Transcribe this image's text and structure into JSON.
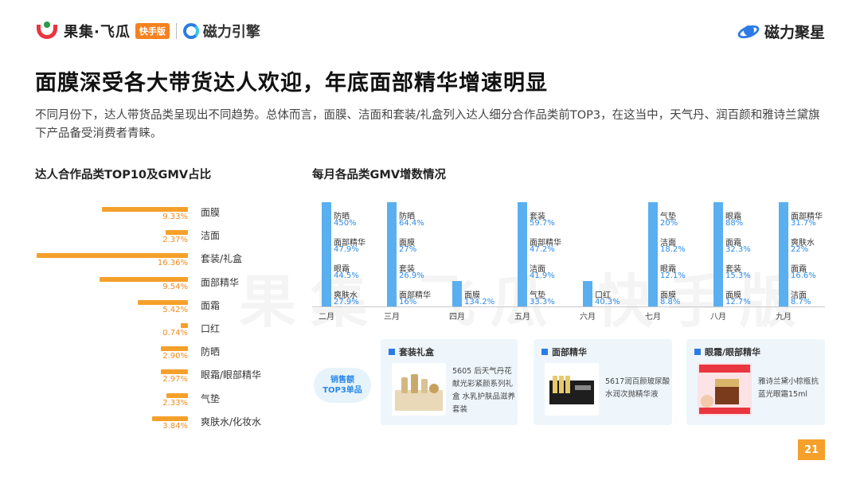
{
  "header": {
    "brand1": "果集·飞瓜",
    "brand1_badge": "快手版",
    "brand2": "磁力引擎",
    "brand3": "磁力聚星"
  },
  "title": "面膜深受各大带货达人欢迎，年底面部精华增速明显",
  "description": "不同月份下，达人带货品类呈现出不同趋势。总体而言，面膜、洁面和套装/礼盒列入达人细分合作品类前TOP3，在这当中，天气丹、润百颜和雅诗兰黛旗下产品备受消费者青睐。",
  "watermark": "果集·飞瓜 快手版",
  "colors": {
    "bar_orange": "#f5a02a",
    "bar_blue": "#5aaff0",
    "value_blue": "#2c8ae8",
    "brand_red": "#e9363f"
  },
  "chart_data": [
    {
      "type": "bar",
      "title": "达人合作品类TOP10及GMV占比",
      "orientation": "horizontal",
      "categories": [
        "面膜",
        "洁面",
        "套装/礼盒",
        "面部精华",
        "面霜",
        "口红",
        "防晒",
        "眼霜/眼部精华",
        "气垫",
        "爽肤水/化妆水"
      ],
      "values": [
        9.33,
        2.37,
        16.36,
        9.54,
        5.42,
        0.74,
        2.9,
        2.97,
        2.33,
        3.84
      ],
      "value_labels": [
        "9.33%",
        "2.37%",
        "16.36%",
        "9.54%",
        "5.42%",
        "0.74%",
        "2.90%",
        "2.97%",
        "2.33%",
        "3.84%"
      ],
      "unit": "%"
    },
    {
      "type": "bar",
      "title": "每月各品类GMV增数情况",
      "months": [
        {
          "month": "二月",
          "items": [
            {
              "name": "防晒",
              "value": "450%"
            },
            {
              "name": "面部精华",
              "value": "47.9%"
            },
            {
              "name": "眼霜",
              "value": "44.5%"
            },
            {
              "name": "爽肤水",
              "value": "27.9%"
            }
          ]
        },
        {
          "month": "三月",
          "items": [
            {
              "name": "防晒",
              "value": "64.4%"
            },
            {
              "name": "面膜",
              "value": "27%"
            },
            {
              "name": "套装",
              "value": "26.9%"
            },
            {
              "name": "面部精华",
              "value": "16%"
            }
          ]
        },
        {
          "month": "四月",
          "items": [
            {
              "name": "面膜",
              "value": "134.2%"
            }
          ]
        },
        {
          "month": "五月",
          "items": [
            {
              "name": "套装",
              "value": "59.7%"
            },
            {
              "name": "面部精华",
              "value": "47.2%"
            },
            {
              "name": "洁面",
              "value": "41.9%"
            },
            {
              "name": "气垫",
              "value": "33.3%"
            }
          ]
        },
        {
          "month": "六月",
          "items": [
            {
              "name": "口红",
              "value": "40.3%"
            }
          ]
        },
        {
          "month": "七月",
          "items": [
            {
              "name": "气垫",
              "value": "20%"
            },
            {
              "name": "洁面",
              "value": "18.2%"
            },
            {
              "name": "眼霜",
              "value": "12.1%"
            },
            {
              "name": "面膜",
              "value": "8.8%"
            }
          ]
        },
        {
          "month": "八月",
          "items": [
            {
              "name": "眼霜",
              "value": "88%"
            },
            {
              "name": "面霜",
              "value": "32.3%"
            },
            {
              "name": "套装",
              "value": "15.3%"
            },
            {
              "name": "面膜",
              "value": "12.7%"
            }
          ]
        },
        {
          "month": "九月",
          "items": [
            {
              "name": "面部精华",
              "value": "31.7%"
            },
            {
              "name": "爽肤水",
              "value": "22%"
            },
            {
              "name": "面霜",
              "value": "16.6%"
            },
            {
              "name": "洁面",
              "value": "8.7%"
            }
          ]
        }
      ]
    }
  ],
  "top3": {
    "badge_line1": "销售额",
    "badge_line2": "TOP3单品",
    "cards": [
      {
        "category": "套装礼盒",
        "desc_lines": [
          "5605 后天气丹花",
          "献光彩紧颜系列礼",
          "盒 水乳护肤品滋养",
          "套装"
        ]
      },
      {
        "category": "面部精华",
        "desc_lines": [
          "5617润百颜玻尿酸",
          "水润次抛精华液"
        ]
      },
      {
        "category": "眼霜/眼部精华",
        "desc_lines": [
          "雅诗兰黛小棕瓶抗",
          "蓝光眼霜15ml"
        ]
      }
    ]
  },
  "page_number": "21"
}
